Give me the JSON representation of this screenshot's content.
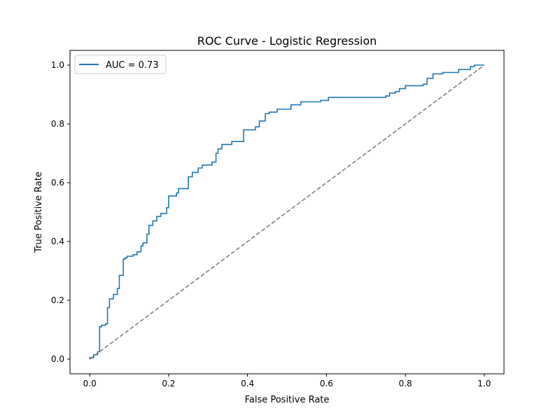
{
  "chart_data": {
    "type": "line",
    "title": "ROC Curve - Logistic Regression",
    "xlabel": "False Positive Rate",
    "ylabel": "True Positive Rate",
    "xlim": [
      -0.05,
      1.05
    ],
    "ylim": [
      -0.05,
      1.05
    ],
    "xticks": [
      0.0,
      0.2,
      0.4,
      0.6,
      0.8,
      1.0
    ],
    "yticks": [
      0.0,
      0.2,
      0.4,
      0.6,
      0.8,
      1.0
    ],
    "xtick_labels": [
      "0.0",
      "0.2",
      "0.4",
      "0.6",
      "0.8",
      "1.0"
    ],
    "ytick_labels": [
      "0.0",
      "0.2",
      "0.4",
      "0.6",
      "0.8",
      "1.0"
    ],
    "grid": false,
    "legend_position": "top-left",
    "series": [
      {
        "name": "AUC = 0.73",
        "color": "#1f77b4",
        "style": "step",
        "points": [
          [
            0.0,
            0.0
          ],
          [
            0.0,
            0.005
          ],
          [
            0.01,
            0.005
          ],
          [
            0.01,
            0.015
          ],
          [
            0.02,
            0.015
          ],
          [
            0.02,
            0.025
          ],
          [
            0.025,
            0.025
          ],
          [
            0.025,
            0.11
          ],
          [
            0.03,
            0.11
          ],
          [
            0.03,
            0.115
          ],
          [
            0.04,
            0.115
          ],
          [
            0.04,
            0.12
          ],
          [
            0.045,
            0.12
          ],
          [
            0.045,
            0.175
          ],
          [
            0.05,
            0.175
          ],
          [
            0.05,
            0.205
          ],
          [
            0.06,
            0.205
          ],
          [
            0.06,
            0.22
          ],
          [
            0.07,
            0.22
          ],
          [
            0.07,
            0.24
          ],
          [
            0.075,
            0.24
          ],
          [
            0.075,
            0.285
          ],
          [
            0.085,
            0.285
          ],
          [
            0.085,
            0.34
          ],
          [
            0.09,
            0.34
          ],
          [
            0.09,
            0.345
          ],
          [
            0.095,
            0.345
          ],
          [
            0.095,
            0.35
          ],
          [
            0.11,
            0.35
          ],
          [
            0.11,
            0.355
          ],
          [
            0.12,
            0.355
          ],
          [
            0.12,
            0.365
          ],
          [
            0.13,
            0.365
          ],
          [
            0.13,
            0.385
          ],
          [
            0.135,
            0.385
          ],
          [
            0.135,
            0.395
          ],
          [
            0.145,
            0.395
          ],
          [
            0.145,
            0.425
          ],
          [
            0.15,
            0.425
          ],
          [
            0.15,
            0.455
          ],
          [
            0.16,
            0.455
          ],
          [
            0.16,
            0.47
          ],
          [
            0.17,
            0.47
          ],
          [
            0.17,
            0.485
          ],
          [
            0.18,
            0.485
          ],
          [
            0.18,
            0.495
          ],
          [
            0.195,
            0.495
          ],
          [
            0.195,
            0.515
          ],
          [
            0.2,
            0.515
          ],
          [
            0.2,
            0.555
          ],
          [
            0.22,
            0.555
          ],
          [
            0.22,
            0.565
          ],
          [
            0.225,
            0.565
          ],
          [
            0.225,
            0.58
          ],
          [
            0.25,
            0.58
          ],
          [
            0.25,
            0.62
          ],
          [
            0.26,
            0.62
          ],
          [
            0.26,
            0.635
          ],
          [
            0.275,
            0.635
          ],
          [
            0.275,
            0.65
          ],
          [
            0.285,
            0.65
          ],
          [
            0.285,
            0.66
          ],
          [
            0.31,
            0.66
          ],
          [
            0.31,
            0.67
          ],
          [
            0.32,
            0.67
          ],
          [
            0.32,
            0.7
          ],
          [
            0.325,
            0.7
          ],
          [
            0.325,
            0.715
          ],
          [
            0.335,
            0.715
          ],
          [
            0.335,
            0.73
          ],
          [
            0.36,
            0.73
          ],
          [
            0.36,
            0.74
          ],
          [
            0.39,
            0.74
          ],
          [
            0.39,
            0.78
          ],
          [
            0.42,
            0.78
          ],
          [
            0.42,
            0.79
          ],
          [
            0.43,
            0.79
          ],
          [
            0.43,
            0.81
          ],
          [
            0.445,
            0.81
          ],
          [
            0.445,
            0.835
          ],
          [
            0.455,
            0.835
          ],
          [
            0.455,
            0.84
          ],
          [
            0.475,
            0.84
          ],
          [
            0.475,
            0.85
          ],
          [
            0.51,
            0.85
          ],
          [
            0.51,
            0.865
          ],
          [
            0.535,
            0.865
          ],
          [
            0.535,
            0.875
          ],
          [
            0.585,
            0.875
          ],
          [
            0.585,
            0.88
          ],
          [
            0.605,
            0.88
          ],
          [
            0.605,
            0.89
          ],
          [
            0.75,
            0.89
          ],
          [
            0.75,
            0.895
          ],
          [
            0.76,
            0.895
          ],
          [
            0.76,
            0.905
          ],
          [
            0.775,
            0.905
          ],
          [
            0.775,
            0.91
          ],
          [
            0.785,
            0.91
          ],
          [
            0.785,
            0.92
          ],
          [
            0.8,
            0.92
          ],
          [
            0.8,
            0.93
          ],
          [
            0.845,
            0.93
          ],
          [
            0.845,
            0.935
          ],
          [
            0.855,
            0.935
          ],
          [
            0.855,
            0.955
          ],
          [
            0.87,
            0.955
          ],
          [
            0.87,
            0.97
          ],
          [
            0.895,
            0.97
          ],
          [
            0.895,
            0.975
          ],
          [
            0.935,
            0.975
          ],
          [
            0.935,
            0.985
          ],
          [
            0.965,
            0.985
          ],
          [
            0.965,
            0.995
          ],
          [
            0.975,
            0.995
          ],
          [
            0.975,
            1.0
          ],
          [
            1.0,
            1.0
          ]
        ]
      },
      {
        "name": "",
        "color": "#7f7f7f",
        "style": "dashed",
        "points": [
          [
            0.0,
            0.0
          ],
          [
            1.0,
            1.0
          ]
        ]
      }
    ]
  }
}
